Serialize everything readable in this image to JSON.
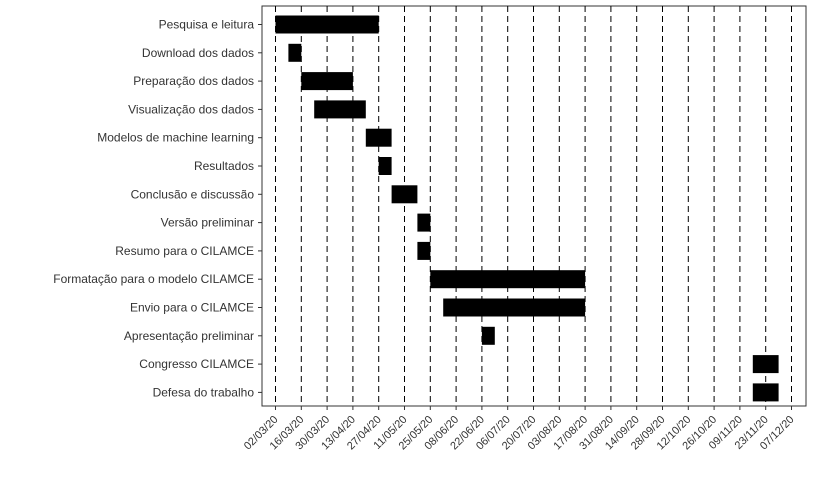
{
  "chart_data": {
    "type": "gantt",
    "title": "",
    "xlabel": "",
    "ylabel": "",
    "x_ticks": [
      "02/03/20",
      "16/03/20",
      "30/03/20",
      "13/04/20",
      "27/04/20",
      "11/05/20",
      "25/05/20",
      "08/06/20",
      "22/06/20",
      "06/07/20",
      "20/07/20",
      "03/08/20",
      "17/08/20",
      "31/08/20",
      "14/09/20",
      "28/09/20",
      "12/10/20",
      "26/10/20",
      "09/11/20",
      "23/11/20",
      "07/12/20"
    ],
    "x_range": [
      "2020-03-02",
      "2020-12-07"
    ],
    "grid": "vertical dashed lines at each tick",
    "bar_color": "#000000",
    "tasks": [
      {
        "name": "Pesquisa e leitura",
        "start": "2020-03-02",
        "end": "2020-04-27"
      },
      {
        "name": "Download dos dados",
        "start": "2020-03-09",
        "end": "2020-03-16"
      },
      {
        "name": "Preparação dos dados",
        "start": "2020-03-16",
        "end": "2020-04-13"
      },
      {
        "name": "Visualização dos dados",
        "start": "2020-03-23",
        "end": "2020-04-20"
      },
      {
        "name": "Modelos de machine learning",
        "start": "2020-04-20",
        "end": "2020-05-04"
      },
      {
        "name": "Resultados",
        "start": "2020-04-27",
        "end": "2020-05-04"
      },
      {
        "name": "Conclusão e discussão",
        "start": "2020-05-04",
        "end": "2020-05-18"
      },
      {
        "name": "Versão preliminar",
        "start": "2020-05-18",
        "end": "2020-05-25"
      },
      {
        "name": "Resumo para o CILAMCE",
        "start": "2020-05-18",
        "end": "2020-05-25"
      },
      {
        "name": "Formatação para o modelo CILAMCE",
        "start": "2020-05-25",
        "end": "2020-08-17"
      },
      {
        "name": "Envio para o CILAMCE",
        "start": "2020-06-01",
        "end": "2020-08-17"
      },
      {
        "name": "Apresentação preliminar",
        "start": "2020-06-22",
        "end": "2020-06-29"
      },
      {
        "name": "Congresso CILAMCE",
        "start": "2020-11-16",
        "end": "2020-11-30"
      },
      {
        "name": "Defesa do trabalho",
        "start": "2020-11-16",
        "end": "2020-11-30"
      }
    ]
  }
}
